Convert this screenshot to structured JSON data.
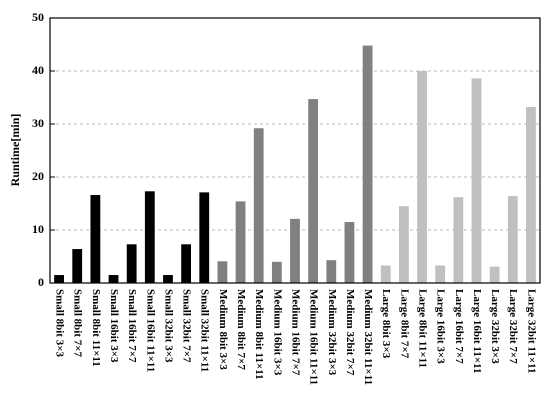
{
  "chart_data": {
    "type": "bar",
    "y_label": "Runtime[min]",
    "categories": [
      "Small 8bit 3×3",
      "Small 8bit 7×7",
      "Small 8bit 11×11",
      "Small 16bit 3×3",
      "Small 16bit 7×7",
      "Small 16bit 11×11",
      "Small 32bit 3×3",
      "Small 32bit 7×7",
      "Small 32bit 11×11",
      "Medium 8bit 3×3",
      "Medium 8bit 7×7",
      "Medium 8bit 11×11",
      "Medium 16bit 3×3",
      "Medium 16bit 7×7",
      "Medium 16bit 11×11",
      "Medium 32bit 3×3",
      "Medium 32bit 7×7",
      "Medium 32bit 11×11",
      "Large 8bit 3×3",
      "Large 8bit 7×7",
      "Large 8bit 11×11",
      "Large 16bit 3×3",
      "Large 16bit 7×7",
      "Large 16bit 11×11",
      "Large 32bit 3×3",
      "Large 32bit 7×7",
      "Large 32bit 11×11"
    ],
    "values": [
      1.5,
      6.4,
      16.6,
      1.5,
      7.3,
      17.3,
      1.5,
      7.3,
      17.1,
      4.1,
      15.4,
      29.2,
      4.0,
      12.1,
      34.7,
      4.3,
      11.5,
      44.8,
      3.3,
      14.5,
      40.0,
      3.3,
      16.2,
      38.6,
      3.1,
      16.4,
      33.2
    ],
    "colors": [
      "#000000",
      "#000000",
      "#000000",
      "#000000",
      "#000000",
      "#000000",
      "#000000",
      "#000000",
      "#000000",
      "#808080",
      "#808080",
      "#808080",
      "#808080",
      "#808080",
      "#808080",
      "#808080",
      "#808080",
      "#808080",
      "#c0c0c0",
      "#c0c0c0",
      "#c0c0c0",
      "#c0c0c0",
      "#c0c0c0",
      "#c0c0c0",
      "#c0c0c0",
      "#c0c0c0",
      "#c0c0c0"
    ],
    "ylim": [
      0,
      50
    ],
    "yticks": [
      0,
      10,
      20,
      30,
      40,
      50
    ],
    "grid": true
  }
}
